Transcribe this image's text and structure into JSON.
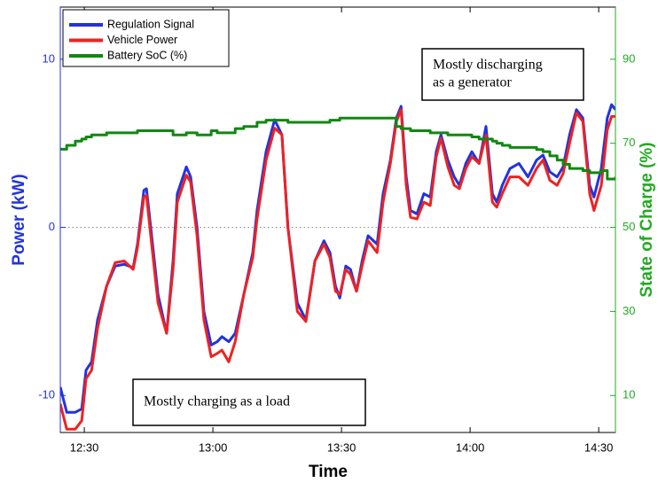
{
  "chart_data": {
    "type": "line",
    "x_label": "Time",
    "y_label": "Power (kW)",
    "y2_label": "State of Charge (%)",
    "y_color": "#2233dd",
    "y2_color": "#22aa22",
    "xlim": [
      744.4,
      873.9
    ],
    "xticks": [
      {
        "value": 750,
        "label": "12:30"
      },
      {
        "value": 780,
        "label": "13:00"
      },
      {
        "value": 810,
        "label": "13:30"
      },
      {
        "value": 840,
        "label": "14:00"
      },
      {
        "value": 870,
        "label": "14:30"
      }
    ],
    "ylim": [
      -12.2,
      13.1
    ],
    "yticks": [
      -10,
      0,
      10
    ],
    "y2lim": [
      1.2,
      102.4
    ],
    "y2ticks": [
      10,
      30,
      50,
      70,
      90
    ],
    "zero_line": true,
    "x": [
      744.4,
      745.9,
      747.9,
      749.4,
      750.4,
      751.7,
      753.1,
      755.2,
      757.2,
      759.3,
      761.4,
      762.4,
      763.9,
      764.5,
      765.5,
      767.2,
      769.2,
      770.7,
      771.7,
      773.8,
      774.8,
      776.3,
      777.9,
      779.6,
      781.0,
      782.1,
      783.7,
      785.2,
      787.2,
      789.3,
      790.3,
      792.4,
      794.4,
      796.1,
      797.5,
      799.7,
      801.7,
      803.8,
      805.9,
      807.3,
      808.6,
      809.6,
      811.0,
      812.1,
      813.5,
      814.8,
      816.2,
      818.3,
      819.7,
      821.4,
      822.8,
      823.9,
      825.1,
      826.1,
      827.6,
      829.2,
      830.7,
      832.1,
      833.2,
      834.8,
      836.3,
      837.5,
      839.0,
      840.4,
      842.1,
      843.7,
      845.2,
      846.2,
      847.5,
      849.3,
      851.4,
      853.5,
      855.5,
      857.0,
      858.6,
      860.3,
      861.7,
      863.2,
      864.8,
      866.3,
      867.9,
      868.9,
      870.6,
      872.0,
      873.0,
      873.9
    ],
    "series": [
      {
        "name": "Regulation Signal",
        "color": "#2233dd",
        "values": [
          -9.5,
          -11,
          -11,
          -10.8,
          -8.5,
          -8,
          -5.5,
          -3.5,
          -2.3,
          -2.2,
          -2.4,
          -1,
          2.2,
          2.3,
          0,
          -4,
          -6.3,
          -2,
          2,
          3.6,
          3,
          0,
          -5,
          -7,
          -6.8,
          -6.5,
          -6.8,
          -6.3,
          -4,
          -1.5,
          1,
          4.5,
          6.4,
          5.5,
          0,
          -4.5,
          -5.5,
          -2,
          -0.8,
          -1.5,
          -3.5,
          -4.2,
          -2.3,
          -2.5,
          -3.8,
          -2,
          -0.5,
          -1,
          2,
          4,
          6.5,
          7.2,
          3,
          1,
          0.8,
          2,
          1.8,
          4.5,
          5.5,
          4,
          3,
          2.5,
          3.8,
          4.5,
          3.8,
          6,
          2,
          1.5,
          2.5,
          3.5,
          3.8,
          3,
          4,
          4.3,
          3.3,
          3,
          3.6,
          5.5,
          7,
          6.5,
          2.5,
          1.8,
          3.5,
          6.5,
          7.3,
          7
        ]
      },
      {
        "name": "Vehicle Power",
        "color": "#ee2222",
        "values": [
          -10.5,
          -12,
          -12,
          -11.5,
          -9,
          -8.5,
          -6,
          -3.5,
          -2.1,
          -2,
          -2.5,
          -1.2,
          1.8,
          1.9,
          -0.5,
          -4.5,
          -6.3,
          -2.5,
          1.5,
          3.1,
          2.7,
          -0.5,
          -5.5,
          -7.7,
          -7.5,
          -7.3,
          -8,
          -6.8,
          -4,
          -1.8,
          0.5,
          4,
          5.9,
          5.5,
          0,
          -5,
          -5.6,
          -2,
          -1,
          -1.8,
          -3.8,
          -4,
          -2.5,
          -2.8,
          -3.8,
          -2.3,
          -0.8,
          -1.5,
          1.5,
          3.8,
          6.3,
          7,
          2.5,
          0.6,
          0.5,
          1.5,
          1.3,
          4.2,
          5.3,
          3.6,
          2.5,
          2.3,
          3.5,
          4.2,
          3.8,
          5.5,
          1.5,
          1.2,
          2,
          3,
          3,
          2.5,
          3.5,
          4,
          2.8,
          2.5,
          3.2,
          5,
          6.8,
          6.3,
          2,
          1,
          2.5,
          5.8,
          6.6,
          6.6
        ]
      },
      {
        "name": "Battery SoC (%)",
        "color": "#118811",
        "axis": "y2",
        "step": true,
        "values": [
          68.6,
          69.5,
          70.5,
          71,
          71.5,
          72,
          72,
          72.5,
          72.5,
          72.5,
          72.5,
          73,
          73,
          73,
          73,
          73,
          73,
          72,
          72,
          72.5,
          72.5,
          72,
          72,
          73,
          72.5,
          72.5,
          72.5,
          73.5,
          74,
          74,
          75,
          75.5,
          75.5,
          75.5,
          75,
          75,
          75,
          75,
          75,
          75.5,
          75.5,
          76,
          76,
          76,
          76,
          76,
          76,
          76,
          76,
          76,
          74,
          73.5,
          73.5,
          73,
          73,
          73,
          72.5,
          72.5,
          72.5,
          72,
          72,
          72,
          72,
          71.5,
          71,
          71,
          70.5,
          70,
          69.5,
          69,
          69,
          69,
          68.5,
          68,
          67,
          66,
          65,
          64,
          64,
          63.5,
          63,
          63,
          63.5,
          61.5,
          61.5,
          62
        ]
      }
    ],
    "annotations": [
      {
        "text": [
          "Mostly discharging",
          "as a generator"
        ]
      },
      {
        "text": [
          "Mostly charging as a load"
        ]
      }
    ]
  }
}
